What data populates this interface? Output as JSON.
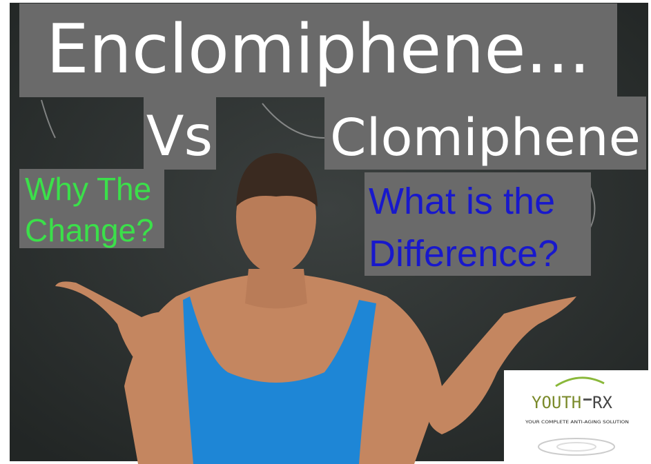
{
  "headline": {
    "line1": "Enclomiphene...",
    "vs": "Vs",
    "line2": "Clomiphene"
  },
  "left_caption": {
    "lines": [
      "Why The",
      "Change?"
    ]
  },
  "right_caption": {
    "lines": [
      "What is the",
      "Difference?"
    ]
  },
  "logo": {
    "name_left": "YOUTH",
    "name_right": "RX",
    "tagline": "YOUR COMPLETE ANTI-AGING SOLUTION"
  }
}
